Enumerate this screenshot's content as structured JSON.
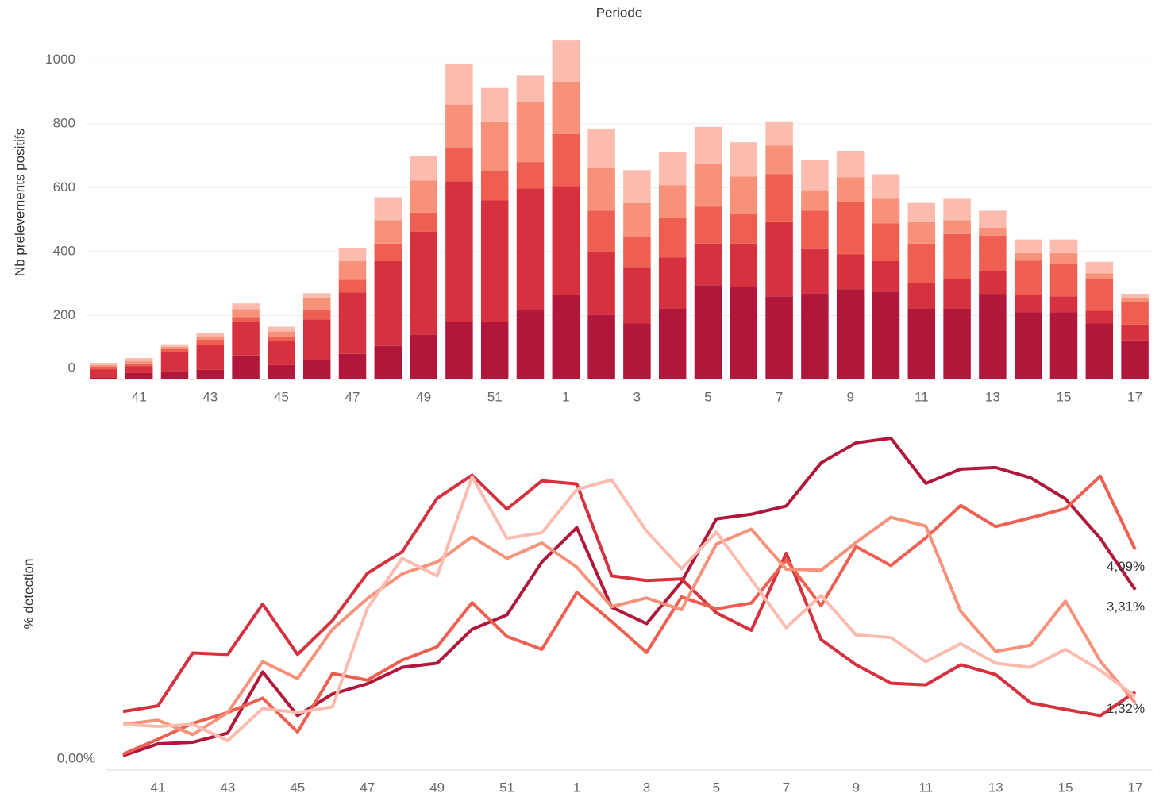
{
  "chart_data": [
    {
      "type": "bar",
      "stacked": true,
      "title": "Periode",
      "ylabel": "Nb prelevements positifs",
      "categories": [
        null,
        "41",
        null,
        "43",
        null,
        "45",
        null,
        "47",
        null,
        "49",
        null,
        "51",
        null,
        "1",
        null,
        "3",
        null,
        "5",
        null,
        "7",
        null,
        "9",
        null,
        "11",
        null,
        "13",
        null,
        "15",
        null,
        "17"
      ],
      "ylim": [
        0,
        1100
      ],
      "yticks": [
        0,
        200,
        400,
        600,
        800,
        1000
      ],
      "grid": true,
      "series": [
        {
          "color": "#b0173a",
          "values": [
            5,
            20,
            25,
            30,
            75,
            45,
            62,
            80,
            105,
            140,
            180,
            180,
            220,
            265,
            202,
            175,
            222,
            295,
            288,
            260,
            270,
            282,
            275,
            222,
            222,
            268,
            210,
            210,
            175,
            122
          ]
        },
        {
          "color": "#d6313f",
          "values": [
            27,
            22,
            60,
            78,
            105,
            75,
            126,
            192,
            265,
            322,
            440,
            380,
            378,
            340,
            198,
            177,
            160,
            130,
            137,
            232,
            138,
            110,
            95,
            80,
            93,
            70,
            55,
            50,
            40,
            50
          ]
        },
        {
          "color": "#ef5f51",
          "values": [
            8,
            8,
            10,
            17,
            15,
            13,
            30,
            40,
            55,
            60,
            105,
            92,
            82,
            163,
            128,
            93,
            123,
            115,
            93,
            150,
            120,
            163,
            118,
            123,
            140,
            112,
            107,
            102,
            100,
            70
          ]
        },
        {
          "color": "#f7917a",
          "values": [
            5,
            7,
            7,
            10,
            25,
            17,
            37,
            58,
            73,
            100,
            135,
            153,
            188,
            164,
            134,
            107,
            103,
            135,
            117,
            90,
            64,
            77,
            77,
            67,
            43,
            25,
            23,
            33,
            17,
            13
          ]
        },
        {
          "color": "#fbbcaf",
          "values": [
            7,
            10,
            8,
            10,
            18,
            15,
            15,
            40,
            72,
            78,
            128,
            107,
            82,
            128,
            123,
            103,
            102,
            115,
            107,
            73,
            96,
            83,
            77,
            60,
            67,
            53,
            43,
            43,
            36,
            13
          ]
        }
      ]
    },
    {
      "type": "line",
      "ylabel": "% detection",
      "categories": [
        null,
        "41",
        null,
        "43",
        null,
        "45",
        null,
        "47",
        null,
        "49",
        null,
        "51",
        null,
        "1",
        null,
        "3",
        null,
        "5",
        null,
        "7",
        null,
        "9",
        null,
        "11",
        null,
        "13",
        null,
        "15",
        null,
        "17"
      ],
      "ylim": [
        -0.2,
        6.6
      ],
      "yticks": [
        {
          "value": 0,
          "label": "0,00%"
        }
      ],
      "series": [
        {
          "color": "#b0173a",
          "values": [
            0.08,
            0.31,
            0.34,
            0.52,
            1.71,
            0.86,
            1.28,
            1.48,
            1.8,
            1.88,
            2.54,
            2.82,
            3.85,
            4.52,
            2.97,
            2.65,
            3.46,
            4.69,
            4.78,
            4.94,
            5.78,
            6.17,
            6.26,
            5.38,
            5.66,
            5.69,
            5.49,
            5.08,
            4.31,
            3.31
          ],
          "value_labels": [
            null,
            null,
            null,
            null,
            null,
            null,
            null,
            null,
            null,
            null,
            null,
            null,
            null,
            null,
            null,
            null,
            null,
            null,
            null,
            null,
            null,
            null,
            null,
            null,
            null,
            null,
            null,
            null,
            null,
            "3,31%"
          ]
        },
        {
          "color": "#d6313f",
          "values": [
            0.94,
            1.05,
            2.08,
            2.05,
            3.03,
            2.05,
            2.71,
            3.63,
            4.05,
            5.09,
            5.54,
            4.88,
            5.43,
            5.37,
            3.58,
            3.49,
            3.52,
            2.86,
            2.52,
            4.02,
            2.34,
            1.85,
            1.49,
            1.46,
            1.85,
            1.66,
            1.11,
            0.98,
            0.86,
            1.32
          ],
          "value_labels": [
            null,
            null,
            null,
            null,
            null,
            null,
            null,
            null,
            null,
            null,
            null,
            null,
            null,
            null,
            null,
            null,
            null,
            null,
            null,
            null,
            null,
            null,
            null,
            null,
            null,
            null,
            null,
            null,
            null,
            "1,32%"
          ]
        },
        {
          "color": "#ef5f51",
          "values": [
            0.11,
            0.4,
            0.71,
            0.92,
            1.2,
            0.54,
            1.68,
            1.55,
            1.94,
            2.2,
            3.06,
            2.4,
            2.15,
            3.26,
            2.69,
            2.09,
            3.17,
            2.94,
            3.05,
            3.89,
            3.0,
            4.15,
            3.78,
            4.32,
            4.95,
            4.54,
            4.71,
            4.89,
            5.52,
            4.09
          ],
          "value_labels": [
            null,
            null,
            null,
            null,
            null,
            null,
            null,
            null,
            null,
            null,
            null,
            null,
            null,
            null,
            null,
            null,
            null,
            null,
            null,
            null,
            null,
            null,
            null,
            null,
            null,
            null,
            null,
            null,
            null,
            "4,09%"
          ]
        },
        {
          "color": "#f7917a",
          "values": [
            0.69,
            0.77,
            0.49,
            0.92,
            1.91,
            1.58,
            2.54,
            3.14,
            3.62,
            3.85,
            4.34,
            3.92,
            4.22,
            3.75,
            2.98,
            3.15,
            2.92,
            4.2,
            4.49,
            3.71,
            3.69,
            4.23,
            4.72,
            4.55,
            2.89,
            2.11,
            2.23,
            3.09,
            1.92,
            1.11
          ]
        },
        {
          "color": "#fbbcaf",
          "values": [
            0.69,
            0.65,
            0.69,
            0.37,
            1.0,
            0.92,
            1.03,
            2.95,
            3.92,
            3.58,
            5.51,
            4.31,
            4.42,
            5.26,
            5.45,
            4.45,
            3.72,
            4.43,
            3.51,
            2.57,
            3.2,
            2.43,
            2.38,
            1.91,
            2.26,
            1.88,
            1.8,
            2.15,
            1.74,
            1.23
          ]
        }
      ]
    }
  ]
}
